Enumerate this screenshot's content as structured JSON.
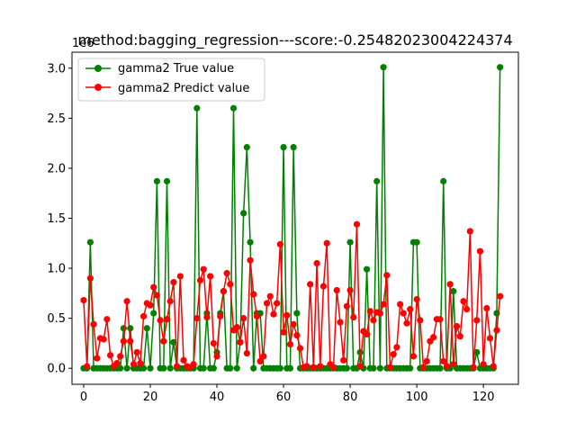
{
  "chart_data": {
    "type": "line",
    "title": "method:bagging_regression---score:-0.25482023004224374",
    "offset_text": "1e6",
    "xlabel": "",
    "ylabel": "",
    "xlim": [
      -3.5,
      130.5
    ],
    "ylim": [
      -0.16,
      3.16
    ],
    "xticks": [
      0,
      20,
      40,
      60,
      80,
      100,
      120
    ],
    "yticks": [
      0.0,
      0.5,
      1.0,
      1.5,
      2.0,
      2.5,
      3.0
    ],
    "xtick_labels": [
      "0",
      "20",
      "40",
      "60",
      "80",
      "100",
      "120"
    ],
    "ytick_labels": [
      "0.0",
      "0.5",
      "1.0",
      "1.5",
      "2.0",
      "2.5",
      "3.0"
    ],
    "legend_position": "upper-left",
    "series": [
      {
        "name": "gamma2 True value",
        "color": "#008000",
        "values": [
          0,
          0,
          1.26,
          0,
          0,
          0,
          0,
          0,
          0,
          0,
          0,
          0,
          0.4,
          0,
          0.4,
          0,
          0,
          0,
          0,
          0.4,
          0,
          0.55,
          1.87,
          0,
          0,
          1.87,
          0,
          0.26,
          0,
          0,
          0,
          0,
          0,
          0,
          2.6,
          0,
          0,
          0.55,
          0,
          0,
          0.16,
          0.55,
          0.77,
          0,
          0,
          2.6,
          0,
          0.26,
          1.55,
          2.21,
          1.26,
          0,
          0.55,
          0.55,
          0,
          0,
          0,
          0,
          0,
          0,
          2.21,
          0,
          0,
          2.21,
          0.55,
          0,
          0,
          0,
          0,
          0,
          0,
          0,
          0,
          0,
          0,
          0,
          0,
          0,
          0,
          0,
          1.26,
          0,
          0,
          0.16,
          0,
          0.99,
          0,
          0,
          1.87,
          0,
          3.01,
          0,
          0,
          0,
          0,
          0,
          0,
          0,
          0,
          1.26,
          1.26,
          0,
          0,
          0,
          0,
          0,
          0,
          0,
          1.87,
          0,
          0,
          0.77,
          0,
          0,
          0,
          0,
          0,
          0,
          0.16,
          0,
          0,
          0,
          0,
          0,
          0.55,
          3.01
        ]
      },
      {
        "name": "gamma2 Predict value",
        "color": "#ff0000",
        "values": [
          0.68,
          0.02,
          0.9,
          0.44,
          0.1,
          0.3,
          0.29,
          0.49,
          0.13,
          0.02,
          0.05,
          0.12,
          0.27,
          0.67,
          0.27,
          0.04,
          0.16,
          0.05,
          0.52,
          0.65,
          0.63,
          0.81,
          0.73,
          0.48,
          0.27,
          0.49,
          0.67,
          0.86,
          0.02,
          0.92,
          0.08,
          0.02,
          0.01,
          0.04,
          0.5,
          0.88,
          0.99,
          0.51,
          0.92,
          0.25,
          0.12,
          0.52,
          0.77,
          0.95,
          0.84,
          0.38,
          0.41,
          0.26,
          0.5,
          0.15,
          1.08,
          0.74,
          0.52,
          0.07,
          0.12,
          0.65,
          0.72,
          0.54,
          0.65,
          1.24,
          0.36,
          0.53,
          0.24,
          0.44,
          0.33,
          0.2,
          0.01,
          0.02,
          0.84,
          0.01,
          1.05,
          0.02,
          0.82,
          1.25,
          0.04,
          0.01,
          0.78,
          0.46,
          0.08,
          0.62,
          0.78,
          0.51,
          1.44,
          0.02,
          0.37,
          0.34,
          0.57,
          0.48,
          0.56,
          0.55,
          0.64,
          0.93,
          0.01,
          0.14,
          0.21,
          0.64,
          0.55,
          0.45,
          0.59,
          0.12,
          0.69,
          0.48,
          0.01,
          0.07,
          0.27,
          0.31,
          0.49,
          0.49,
          0.07,
          0.02,
          0.84,
          0.04,
          0.42,
          0.32,
          0.67,
          0.59,
          1.37,
          0.01,
          0.48,
          1.17,
          0.04,
          0.6,
          0.3,
          0.02,
          0.38,
          0.72
        ]
      }
    ]
  }
}
